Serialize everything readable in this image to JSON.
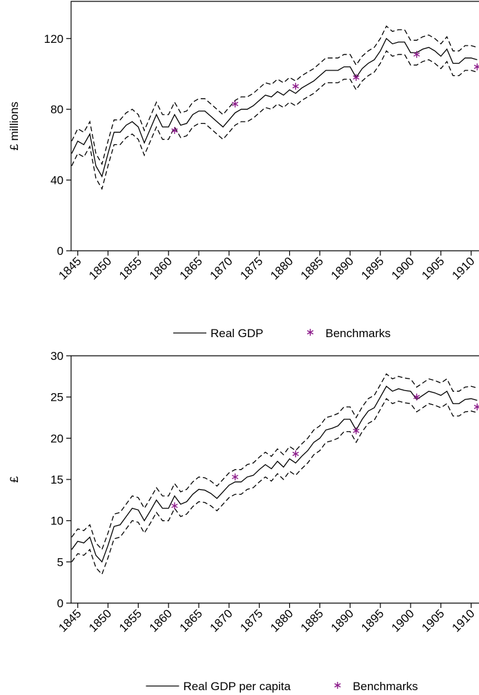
{
  "chart_data": [
    {
      "type": "line",
      "ylabel": "£ millions",
      "legend": "bottom",
      "xlim": [
        1843.9,
        1911.3
      ],
      "ylim": [
        0,
        141
      ],
      "xticks": [
        1845,
        1850,
        1855,
        1860,
        1865,
        1870,
        1875,
        1880,
        1885,
        1890,
        1895,
        1900,
        1905,
        1910
      ],
      "yticks": [
        0,
        40,
        80,
        120
      ],
      "x": [
        1844,
        1845,
        1846,
        1847,
        1848,
        1849,
        1850,
        1851,
        1852,
        1853,
        1854,
        1855,
        1856,
        1857,
        1858,
        1859,
        1860,
        1861,
        1862,
        1863,
        1864,
        1865,
        1866,
        1867,
        1868,
        1869,
        1870,
        1871,
        1872,
        1873,
        1874,
        1875,
        1876,
        1877,
        1878,
        1879,
        1880,
        1881,
        1882,
        1883,
        1884,
        1885,
        1886,
        1887,
        1888,
        1889,
        1890,
        1891,
        1892,
        1893,
        1894,
        1895,
        1896,
        1897,
        1898,
        1899,
        1900,
        1901,
        1902,
        1903,
        1904,
        1905,
        1906,
        1907,
        1908,
        1909,
        1910,
        1911
      ],
      "series": [
        {
          "name": "Real GDP",
          "color": "#000000",
          "style": "solid",
          "values": [
            55,
            62,
            60,
            66,
            48,
            42,
            55,
            67,
            67,
            71,
            73,
            70,
            61,
            69,
            77,
            70,
            70,
            77,
            71,
            72,
            77,
            79,
            79,
            76,
            73,
            70,
            74,
            78,
            80,
            80,
            82,
            85,
            88,
            87,
            90,
            88,
            91,
            89,
            92,
            94,
            96,
            99,
            102,
            102,
            102,
            104,
            104,
            98,
            103,
            106,
            108,
            113,
            120,
            117,
            118,
            118,
            112,
            112,
            114,
            115,
            113,
            110,
            114,
            106,
            106,
            109,
            109,
            108
          ]
        },
        {
          "color": "#000000",
          "style": "dashed",
          "values": [
            62,
            69,
            67,
            73,
            55,
            49,
            62,
            74,
            74,
            78,
            80,
            77,
            68,
            76,
            84,
            77,
            77,
            84,
            78,
            79,
            84,
            86,
            86,
            83,
            80,
            77,
            81,
            85,
            87,
            87,
            89,
            92,
            95,
            94,
            97,
            95,
            98,
            96,
            99,
            101,
            103,
            106,
            109,
            109,
            109,
            111,
            111,
            105,
            110,
            113,
            115,
            120,
            127,
            124,
            125,
            125,
            119,
            119,
            121,
            122,
            120,
            117,
            121,
            113,
            113,
            116,
            116,
            115
          ]
        },
        {
          "color": "#000000",
          "style": "dashed",
          "values": [
            48,
            55,
            53,
            59,
            41,
            35,
            48,
            60,
            60,
            64,
            66,
            63,
            54,
            62,
            70,
            63,
            63,
            70,
            64,
            65,
            70,
            72,
            72,
            69,
            66,
            63,
            67,
            71,
            73,
            73,
            75,
            78,
            81,
            80,
            83,
            81,
            84,
            82,
            85,
            87,
            89,
            92,
            95,
            95,
            95,
            97,
            97,
            91,
            96,
            99,
            101,
            106,
            113,
            110,
            111,
            111,
            105,
            105,
            107,
            108,
            106,
            103,
            107,
            99,
            99,
            102,
            102,
            101
          ]
        },
        {
          "name": "Benchmarks",
          "color": "#8b1a89",
          "marker": "asterisk",
          "x": [
            1861,
            1871,
            1881,
            1891,
            1901,
            1911
          ],
          "values": [
            68,
            83,
            93,
            98,
            111,
            104
          ]
        }
      ]
    },
    {
      "type": "line",
      "ylabel": "£",
      "legend": "bottom",
      "xlim": [
        1843.9,
        1911.3
      ],
      "ylim": [
        0,
        30
      ],
      "xticks": [
        1845,
        1850,
        1855,
        1860,
        1865,
        1870,
        1875,
        1880,
        1885,
        1890,
        1895,
        1900,
        1905,
        1910
      ],
      "yticks": [
        0,
        5,
        10,
        15,
        20,
        25,
        30
      ],
      "x": [
        1844,
        1845,
        1846,
        1847,
        1848,
        1849,
        1850,
        1851,
        1852,
        1853,
        1854,
        1855,
        1856,
        1857,
        1858,
        1859,
        1860,
        1861,
        1862,
        1863,
        1864,
        1865,
        1866,
        1867,
        1868,
        1869,
        1870,
        1871,
        1872,
        1873,
        1874,
        1875,
        1876,
        1877,
        1878,
        1879,
        1880,
        1881,
        1882,
        1883,
        1884,
        1885,
        1886,
        1887,
        1888,
        1889,
        1890,
        1891,
        1892,
        1893,
        1894,
        1895,
        1896,
        1897,
        1898,
        1899,
        1900,
        1901,
        1902,
        1903,
        1904,
        1905,
        1906,
        1907,
        1908,
        1909,
        1910,
        1911
      ],
      "series": [
        {
          "name": "Real GDP per capita",
          "color": "#000000",
          "style": "solid",
          "values": [
            6.5,
            7.5,
            7.3,
            8,
            5.8,
            5,
            7,
            9.3,
            9.5,
            10.5,
            11.5,
            11.3,
            10,
            11.2,
            12.5,
            11.5,
            11.5,
            13,
            12,
            12.3,
            13.2,
            13.8,
            13.7,
            13.3,
            12.7,
            13.5,
            14.3,
            14.7,
            14.7,
            15.3,
            15.5,
            16.2,
            16.8,
            16.3,
            17.2,
            16.5,
            17.5,
            17,
            17.8,
            18.5,
            19.5,
            20,
            21,
            21.2,
            21.5,
            22.3,
            22.3,
            21,
            22.3,
            23.3,
            23.7,
            25,
            26.3,
            25.7,
            26,
            25.8,
            25.7,
            24.7,
            25.2,
            25.7,
            25.5,
            25.2,
            25.7,
            24.2,
            24.2,
            24.7,
            24.8,
            24.6
          ]
        },
        {
          "color": "#000000",
          "style": "dashed",
          "values": [
            8,
            9,
            8.8,
            9.5,
            7.3,
            6.5,
            8.5,
            10.8,
            11,
            12,
            13,
            12.8,
            11.5,
            12.7,
            14,
            13,
            13,
            14.5,
            13.5,
            13.8,
            14.7,
            15.3,
            15.2,
            14.8,
            14.2,
            15,
            15.8,
            16.2,
            16.2,
            16.8,
            17,
            17.7,
            18.3,
            17.8,
            18.7,
            18,
            19,
            18.5,
            19.3,
            20,
            21,
            21.5,
            22.5,
            22.7,
            23,
            23.8,
            23.8,
            22.5,
            23.8,
            24.8,
            25.2,
            26.5,
            27.8,
            27.2,
            27.5,
            27.3,
            27.2,
            26.2,
            26.7,
            27.2,
            27,
            26.7,
            27.2,
            25.7,
            25.7,
            26.2,
            26.3,
            26.1
          ]
        },
        {
          "color": "#000000",
          "style": "dashed",
          "values": [
            5,
            6,
            5.8,
            6.5,
            4.3,
            3.5,
            5.5,
            7.8,
            8,
            9,
            10,
            9.8,
            8.5,
            9.7,
            11,
            10,
            10,
            11.5,
            10.5,
            10.8,
            11.7,
            12.3,
            12.2,
            11.8,
            11.2,
            12,
            12.8,
            13.2,
            13.2,
            13.8,
            14,
            14.7,
            15.3,
            14.8,
            15.7,
            15,
            16,
            15.5,
            16.3,
            17,
            18,
            18.5,
            19.5,
            19.7,
            20,
            20.8,
            20.8,
            19.5,
            20.8,
            21.8,
            22.2,
            23.5,
            24.8,
            24.2,
            24.5,
            24.3,
            24.2,
            23.2,
            23.7,
            24.2,
            24,
            23.7,
            24.2,
            22.7,
            22.7,
            23.2,
            23.3,
            23.1
          ]
        },
        {
          "name": "Benchmarks",
          "color": "#8b1a89",
          "marker": "asterisk",
          "x": [
            1861,
            1871,
            1881,
            1891,
            1901,
            1911
          ],
          "values": [
            11.8,
            15.3,
            18.1,
            20.9,
            25,
            23.8
          ]
        }
      ]
    }
  ]
}
